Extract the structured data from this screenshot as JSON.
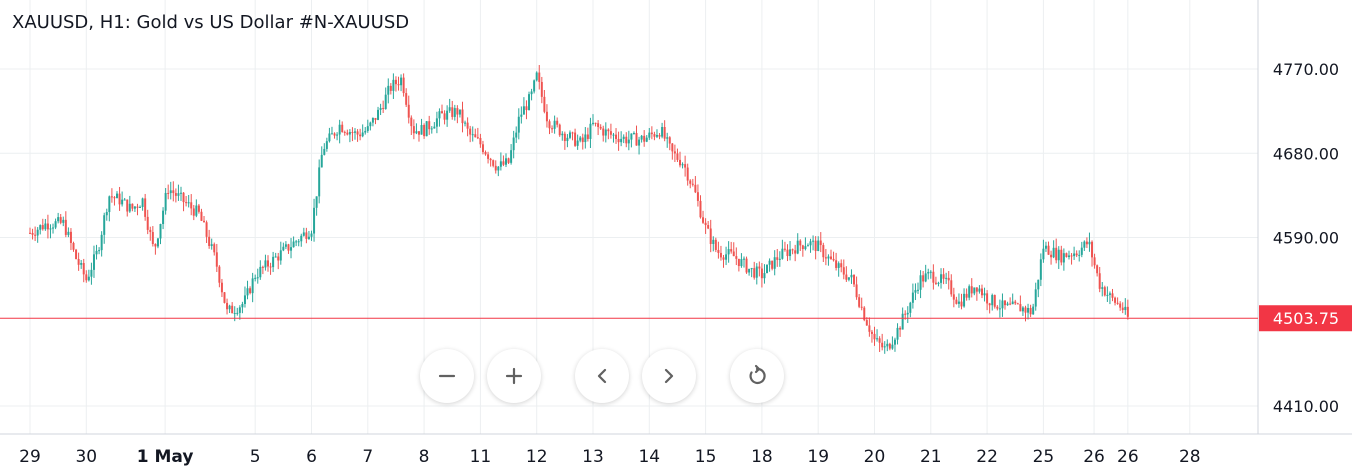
{
  "chart_data": {
    "type": "candlestick",
    "title": "XAUUSD, H1: Gold vs US Dollar #N-XAUUSD",
    "ylim": [
      4393,
      4800
    ],
    "y_ticks": [
      {
        "label": "4770.00",
        "value": 4770
      },
      {
        "label": "4680.00",
        "value": 4680
      },
      {
        "label": "4590.00",
        "value": 4590
      },
      {
        "label": "4410.00",
        "value": 4410
      }
    ],
    "x_ticks": [
      {
        "label": "29",
        "bold": false,
        "pos": 0.0
      },
      {
        "label": "30",
        "bold": false,
        "pos": 1.0
      },
      {
        "label": "1 May",
        "bold": true,
        "pos": 2.4
      },
      {
        "label": "5",
        "bold": false,
        "pos": 4.0
      },
      {
        "label": "6",
        "bold": false,
        "pos": 5.0
      },
      {
        "label": "7",
        "bold": false,
        "pos": 6.0
      },
      {
        "label": "8",
        "bold": false,
        "pos": 7.0
      },
      {
        "label": "11",
        "bold": false,
        "pos": 8.0
      },
      {
        "label": "12",
        "bold": false,
        "pos": 9.0
      },
      {
        "label": "13",
        "bold": false,
        "pos": 10.0
      },
      {
        "label": "14",
        "bold": false,
        "pos": 11.0
      },
      {
        "label": "15",
        "bold": false,
        "pos": 12.0
      },
      {
        "label": "18",
        "bold": false,
        "pos": 13.0
      },
      {
        "label": "19",
        "bold": false,
        "pos": 14.0
      },
      {
        "label": "20",
        "bold": false,
        "pos": 15.0
      },
      {
        "label": "21",
        "bold": false,
        "pos": 16.0
      },
      {
        "label": "22",
        "bold": false,
        "pos": 17.0
      },
      {
        "label": "25",
        "bold": false,
        "pos": 18.0
      },
      {
        "label": "26",
        "bold": false,
        "pos": 18.9
      },
      {
        "label": "26",
        "bold": false,
        "pos": 19.5
      },
      {
        "label": "28",
        "bold": false,
        "pos": 20.6
      }
    ],
    "current_price": {
      "label": "4503.75",
      "value": 4503.75
    },
    "series_points": [
      [
        0,
        4595
      ],
      [
        0.3,
        4605
      ],
      [
        0.6,
        4605
      ],
      [
        0.8,
        4570
      ],
      [
        1.0,
        4545
      ],
      [
        1.2,
        4575
      ],
      [
        1.4,
        4635
      ],
      [
        1.6,
        4630
      ],
      [
        1.8,
        4620
      ],
      [
        2.0,
        4630
      ],
      [
        2.2,
        4575
      ],
      [
        2.45,
        4643
      ],
      [
        2.7,
        4630
      ],
      [
        3.0,
        4615
      ],
      [
        3.3,
        4565
      ],
      [
        3.5,
        4510
      ],
      [
        3.8,
        4520
      ],
      [
        4.0,
        4550
      ],
      [
        4.3,
        4565
      ],
      [
        4.6,
        4580
      ],
      [
        5.0,
        4600
      ],
      [
        5.2,
        4685
      ],
      [
        5.5,
        4710
      ],
      [
        5.8,
        4700
      ],
      [
        6.0,
        4705
      ],
      [
        6.2,
        4725
      ],
      [
        6.4,
        4750
      ],
      [
        6.6,
        4760
      ],
      [
        6.8,
        4705
      ],
      [
        7.0,
        4705
      ],
      [
        7.3,
        4720
      ],
      [
        7.6,
        4725
      ],
      [
        7.8,
        4700
      ],
      [
        8.0,
        4690
      ],
      [
        8.3,
        4665
      ],
      [
        8.5,
        4670
      ],
      [
        8.7,
        4720
      ],
      [
        8.9,
        4740
      ],
      [
        9.0,
        4762
      ],
      [
        9.2,
        4715
      ],
      [
        9.5,
        4700
      ],
      [
        9.8,
        4690
      ],
      [
        10.0,
        4710
      ],
      [
        10.3,
        4700
      ],
      [
        10.6,
        4695
      ],
      [
        10.9,
        4695
      ],
      [
        11.2,
        4705
      ],
      [
        11.4,
        4680
      ],
      [
        11.6,
        4670
      ],
      [
        11.8,
        4640
      ],
      [
        12.0,
        4600
      ],
      [
        12.2,
        4575
      ],
      [
        12.5,
        4570
      ],
      [
        12.8,
        4555
      ],
      [
        13.0,
        4550
      ],
      [
        13.3,
        4570
      ],
      [
        13.6,
        4580
      ],
      [
        13.8,
        4585
      ],
      [
        14.0,
        4580
      ],
      [
        14.3,
        4560
      ],
      [
        14.6,
        4545
      ],
      [
        14.8,
        4510
      ],
      [
        15.0,
        4480
      ],
      [
        15.2,
        4470
      ],
      [
        15.4,
        4490
      ],
      [
        15.6,
        4515
      ],
      [
        15.8,
        4545
      ],
      [
        16.0,
        4550
      ],
      [
        16.3,
        4540
      ],
      [
        16.5,
        4520
      ],
      [
        16.8,
        4540
      ],
      [
        17.0,
        4525
      ],
      [
        17.3,
        4515
      ],
      [
        17.6,
        4515
      ],
      [
        17.8,
        4510
      ],
      [
        18.0,
        4580
      ],
      [
        18.3,
        4570
      ],
      [
        18.6,
        4575
      ],
      [
        18.8,
        4585
      ],
      [
        19.0,
        4540
      ],
      [
        19.2,
        4525
      ],
      [
        19.4,
        4515
      ],
      [
        19.5,
        4504
      ]
    ]
  },
  "controls": {
    "zoom_out": "zoom-out",
    "zoom_in": "zoom-in",
    "scroll_left": "chevron-left",
    "scroll_right": "chevron-right",
    "reset": "reset"
  },
  "colors": {
    "up": "#26a69a",
    "down": "#ef5350",
    "grid": "#eceff1",
    "axis_text": "#131722",
    "price_line": "#f23645",
    "price_label_bg": "#f23645",
    "button_icon": "#616161"
  }
}
